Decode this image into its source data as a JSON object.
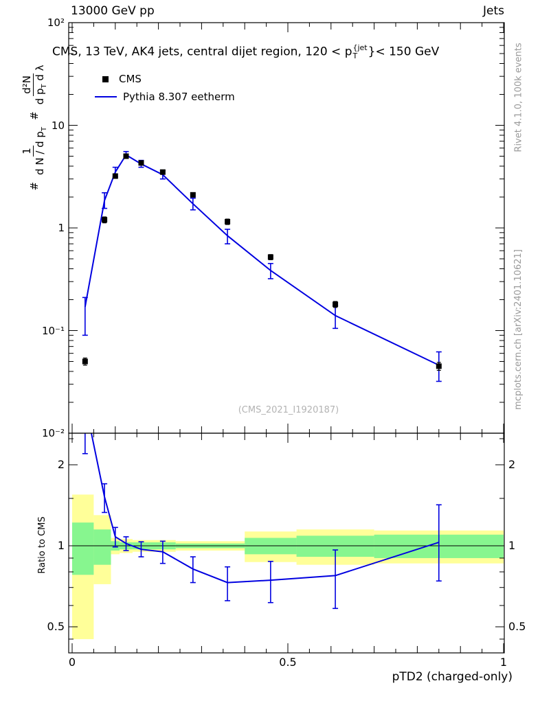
{
  "header": {
    "left": "13000 GeV pp",
    "right": "Jets"
  },
  "title": {
    "text1": "CMS, 13 TeV, AK4 jets, central dijet region, 120 < p",
    "sub": "T",
    "sup": "{jet",
    "text2": "}< 150 GeV"
  },
  "legend": [
    {
      "label": "CMS",
      "marker": "square",
      "color": "#000000"
    },
    {
      "label": "Pythia 8.307 eetherm",
      "marker": "line",
      "color": "#0000e0"
    }
  ],
  "watermark": "(CMS_2021_I1920187)",
  "side_notes": {
    "top_right": "Rivet 4.1.0, 100k events",
    "bottom_right": "mcplots.cern.ch [arXiv:2401.10621]"
  },
  "colors": {
    "blue": "#0000e0",
    "band_yellow": "#ffff99",
    "band_green": "#87f68f",
    "gray_text": "#999999"
  },
  "axes": {
    "main_y": {
      "ticks": [
        {
          "label": "10²",
          "v": 100
        },
        {
          "label": "10",
          "v": 10
        },
        {
          "label": "1",
          "v": 1
        },
        {
          "label": "10⁻¹",
          "v": 0.1
        },
        {
          "label": "10⁻²",
          "v": 0.01
        }
      ],
      "label_parts": {
        "hash1": "#",
        "num1": "1",
        "den1": "d N / d p",
        "den1sub": "T",
        "hash2": "#",
        "num2": "d²N",
        "den2": "d p",
        "den2sub": "T",
        "den2b": " d λ"
      }
    },
    "ratio_y": {
      "label": "Ratio to CMS",
      "ticks": [
        {
          "label": "2",
          "v": 2
        },
        {
          "label": "1",
          "v": 1
        },
        {
          "label": "0.5",
          "v": 0.5
        }
      ]
    },
    "x": {
      "label": "pTD2 (charged-only)",
      "ticks": [
        {
          "label": "0",
          "v": 0
        },
        {
          "label": "0.5",
          "v": 0.5
        },
        {
          "label": "1",
          "v": 1
        }
      ]
    }
  },
  "chart_data": [
    {
      "type": "line",
      "panel": "main",
      "title": "CMS, 13 TeV, AK4 jets, central dijet region, 120 < pT(jet) < 150 GeV",
      "xlabel": "pTD2 (charged-only)",
      "ylabel": "# 1/(dN/dpT) # d²N/(dpT dλ)",
      "xlim": [
        0,
        1
      ],
      "ylog": true,
      "ylim": [
        0.01,
        100
      ],
      "x": [
        0.03,
        0.075,
        0.1,
        0.125,
        0.16,
        0.21,
        0.28,
        0.36,
        0.46,
        0.61,
        0.85
      ],
      "series": [
        {
          "name": "CMS",
          "type": "scatter",
          "marker": "square",
          "color": "#000000",
          "y": [
            0.05,
            1.2,
            3.2,
            5.0,
            4.3,
            3.5,
            2.1,
            1.15,
            0.52,
            0.18,
            0.045
          ],
          "err_lo": [
            0.046,
            1.12,
            3.05,
            4.8,
            4.1,
            3.35,
            2.0,
            1.08,
            0.49,
            0.168,
            0.041
          ],
          "err_hi": [
            0.054,
            1.28,
            3.35,
            5.2,
            4.5,
            3.65,
            2.2,
            1.22,
            0.55,
            0.192,
            0.049
          ]
        },
        {
          "name": "Pythia 8.307 eetherm",
          "type": "line",
          "color": "#0000e0",
          "y": [
            0.17,
            1.85,
            3.5,
            5.15,
            4.2,
            3.3,
            1.72,
            0.84,
            0.385,
            0.14,
            0.046
          ],
          "err_lo": [
            0.09,
            1.55,
            3.15,
            4.8,
            3.9,
            3.0,
            1.5,
            0.7,
            0.32,
            0.105,
            0.032
          ],
          "err_hi": [
            0.21,
            2.2,
            3.9,
            5.55,
            4.55,
            3.6,
            1.95,
            0.97,
            0.45,
            0.175,
            0.062
          ]
        }
      ]
    },
    {
      "type": "ratio",
      "panel": "ratio",
      "ylabel": "Ratio to CMS",
      "ylog": true,
      "ylim": [
        0.4,
        2.62
      ],
      "x": [
        0.03,
        0.075,
        0.1,
        0.125,
        0.16,
        0.21,
        0.28,
        0.36,
        0.46,
        0.61,
        0.85
      ],
      "ratio": [
        3.4,
        1.52,
        1.08,
        1.02,
        0.97,
        0.95,
        0.82,
        0.73,
        0.745,
        0.775,
        1.03
      ],
      "err_lo": [
        2.2,
        1.33,
        0.99,
        0.96,
        0.91,
        0.86,
        0.73,
        0.625,
        0.615,
        0.585,
        0.74
      ],
      "err_hi": [
        4.2,
        1.7,
        1.17,
        1.08,
        1.035,
        1.04,
        0.91,
        0.835,
        0.875,
        0.965,
        1.42
      ],
      "bands": {
        "edges": [
          0,
          0.05,
          0.09,
          0.11,
          0.14,
          0.18,
          0.24,
          0.32,
          0.4,
          0.52,
          0.7,
          1.0
        ],
        "yellow_lo": [
          0.45,
          0.72,
          0.93,
          0.94,
          0.95,
          0.95,
          0.96,
          0.96,
          0.87,
          0.85,
          0.86
        ],
        "yellow_hi": [
          1.55,
          1.3,
          1.07,
          1.06,
          1.05,
          1.05,
          1.04,
          1.04,
          1.13,
          1.15,
          1.14
        ],
        "green_lo": [
          0.78,
          0.85,
          0.96,
          0.97,
          0.97,
          0.97,
          0.98,
          0.98,
          0.93,
          0.91,
          0.9
        ],
        "green_hi": [
          1.22,
          1.15,
          1.04,
          1.03,
          1.03,
          1.03,
          1.02,
          1.02,
          1.07,
          1.09,
          1.1
        ]
      }
    }
  ]
}
